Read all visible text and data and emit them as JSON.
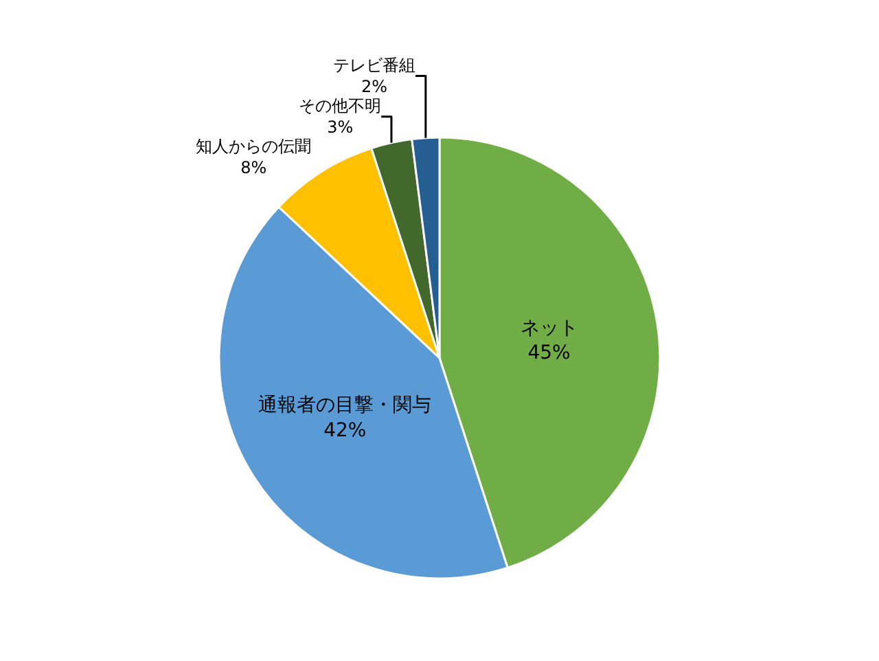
{
  "chart_data": {
    "type": "pie",
    "categories": [
      "ネット",
      "通報者の目撃・関与",
      "知人からの伝聞",
      "その他不明",
      "テレビ番組"
    ],
    "values": [
      45,
      42,
      8,
      3,
      2
    ],
    "colors": [
      "#70ad47",
      "#5b9bd5",
      "#ffc000",
      "#43682b",
      "#255e91"
    ],
    "value_labels": [
      "45%",
      "42%",
      "8%",
      "3%",
      "2%"
    ],
    "legend": false
  }
}
